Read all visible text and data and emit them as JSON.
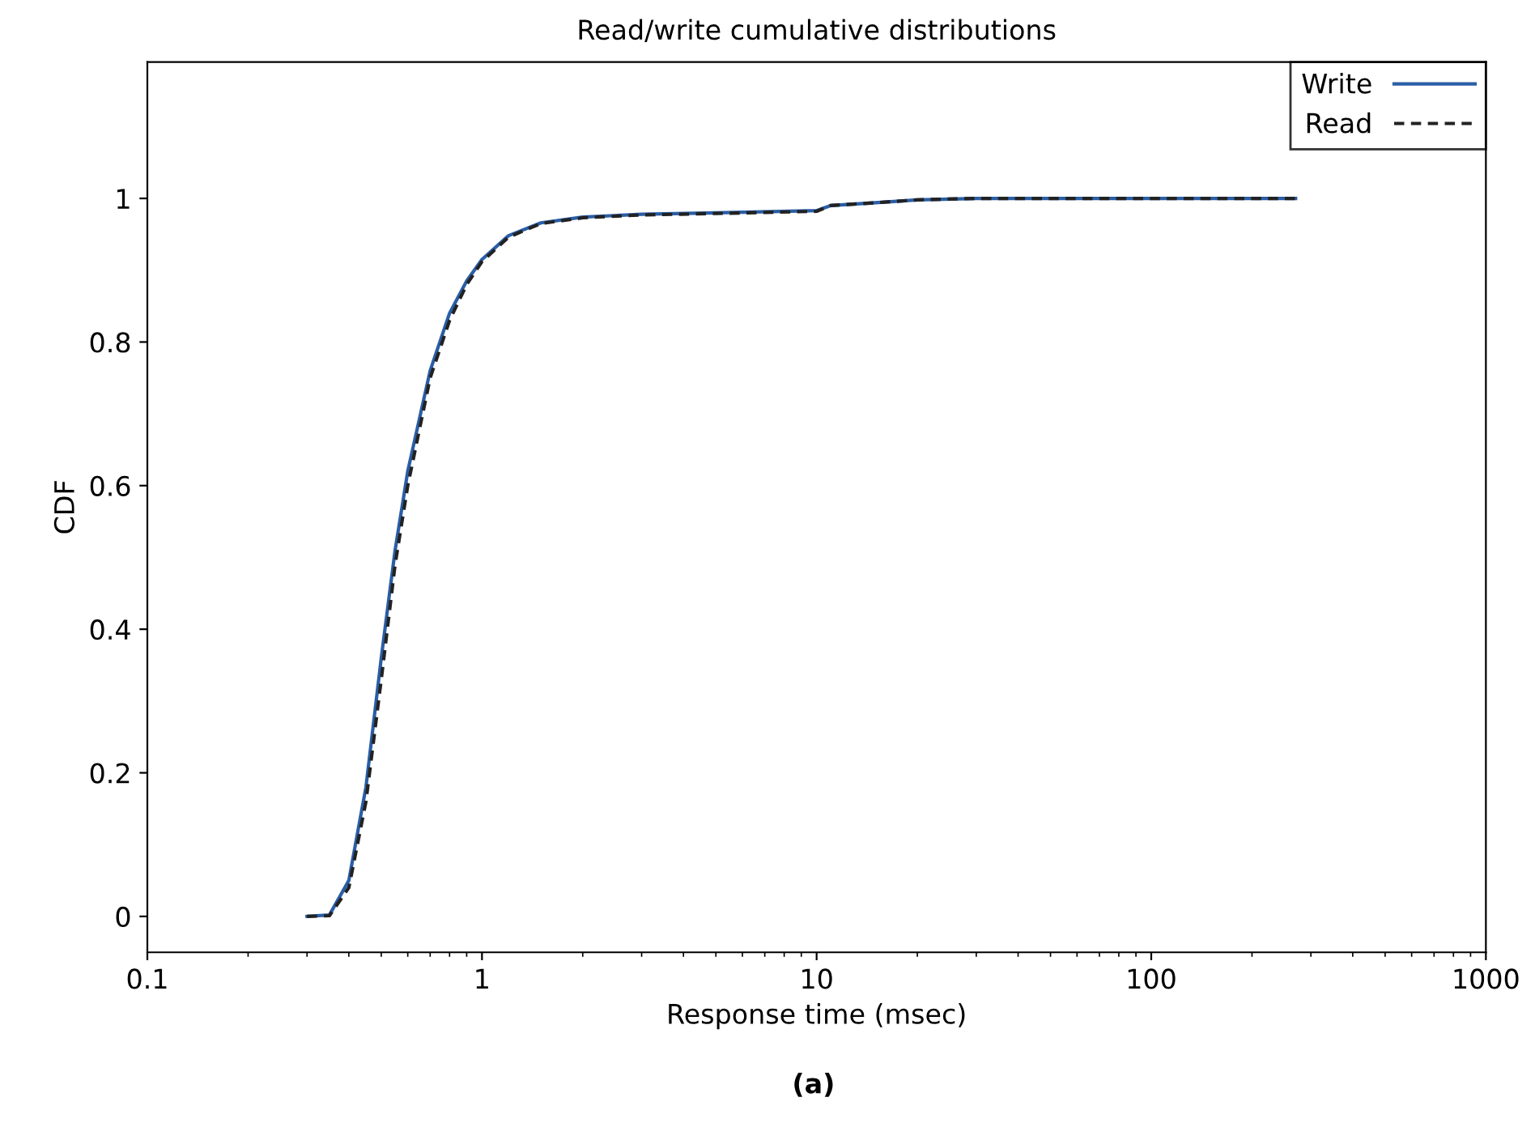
{
  "chart_data": {
    "type": "line",
    "title": "Read/write cumulative distributions",
    "xlabel": "Response time (msec)",
    "ylabel": "CDF",
    "annotations": [
      "(a)"
    ],
    "log": "x",
    "xlim": [
      0.1,
      1000
    ],
    "xticks": [
      0.1,
      1,
      10,
      100,
      1000
    ],
    "ylim": [
      -0.05,
      1.19
    ],
    "yticks": [
      0,
      0.2,
      0.4,
      0.6,
      0.8,
      1
    ],
    "grid": false,
    "legend": "top right",
    "marker": "none",
    "series": [
      {
        "name": "Write",
        "color": "#2a5ea6",
        "line_style": "solid",
        "x": [
          0.3,
          0.35,
          0.4,
          0.45,
          0.5,
          0.55,
          0.6,
          0.7,
          0.8,
          0.9,
          1.0,
          1.2,
          1.5,
          2,
          3,
          5,
          10,
          11,
          15,
          20,
          30,
          100,
          270
        ],
        "values": [
          0,
          0.002,
          0.05,
          0.18,
          0.36,
          0.51,
          0.62,
          0.76,
          0.84,
          0.885,
          0.915,
          0.948,
          0.966,
          0.974,
          0.978,
          0.98,
          0.983,
          0.99,
          0.994,
          0.998,
          1,
          1,
          1
        ]
      },
      {
        "name": "Read",
        "color": "#222222",
        "line_style": "dashed",
        "x": [
          0.3,
          0.35,
          0.4,
          0.45,
          0.5,
          0.55,
          0.6,
          0.7,
          0.8,
          0.9,
          1.0,
          1.2,
          1.5,
          2,
          3,
          5,
          10,
          11,
          15,
          20,
          30,
          100,
          270
        ],
        "values": [
          0,
          0.001,
          0.04,
          0.16,
          0.33,
          0.49,
          0.6,
          0.75,
          0.83,
          0.88,
          0.912,
          0.946,
          0.965,
          0.973,
          0.977,
          0.979,
          0.982,
          0.99,
          0.994,
          0.998,
          1,
          1,
          1
        ]
      }
    ]
  }
}
